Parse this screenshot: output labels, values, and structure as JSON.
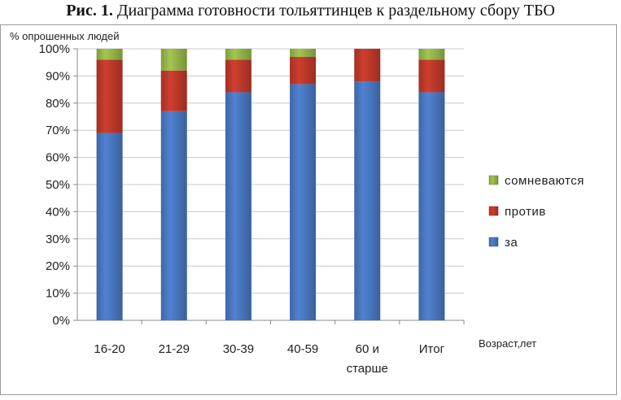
{
  "caption": {
    "prefix": "Рис. 1.",
    "text": "Диаграмма готовности тольяттинцев к раздельному сбору ТБО"
  },
  "chart_data": {
    "type": "bar",
    "stacked": true,
    "ylabel": "% опрошенных людей",
    "xlabel": "Возраст,лет",
    "ylim": [
      0,
      100
    ],
    "yticks": [
      "0%",
      "10%",
      "20%",
      "30%",
      "40%",
      "50%",
      "60%",
      "70%",
      "80%",
      "90%",
      "100%"
    ],
    "grid": true,
    "legend_position": "right",
    "categories": [
      [
        "16-20"
      ],
      [
        "21-29"
      ],
      [
        "30-39"
      ],
      [
        "40-59"
      ],
      [
        "60 и",
        "старше"
      ],
      [
        "Итог"
      ]
    ],
    "series": [
      {
        "name": "за",
        "color": "#4a78c2",
        "values": [
          69,
          77,
          84,
          87,
          88,
          84
        ]
      },
      {
        "name": "против",
        "color": "#c0392b",
        "values": [
          27,
          15,
          12,
          10,
          12,
          12
        ]
      },
      {
        "name": "сомневаются",
        "color": "#97b74a",
        "values": [
          4,
          8,
          4,
          3,
          0,
          4
        ]
      }
    ],
    "legend_order": [
      "сомневаются",
      "против",
      "за"
    ]
  }
}
